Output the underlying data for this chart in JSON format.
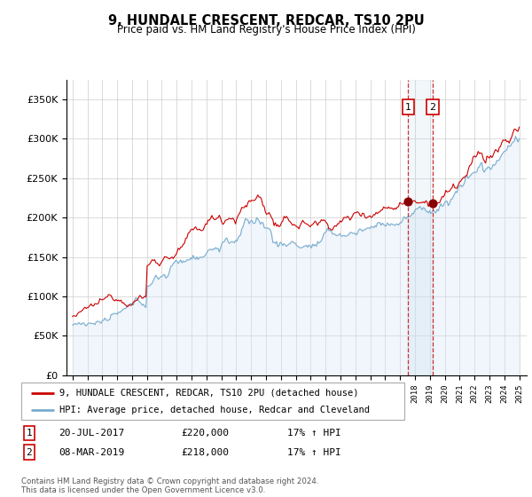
{
  "title": "9, HUNDALE CRESCENT, REDCAR, TS10 2PU",
  "subtitle": "Price paid vs. HM Land Registry's House Price Index (HPI)",
  "background_color": "#ffffff",
  "grid_color": "#cccccc",
  "red_line_color": "#cc0000",
  "blue_line_color": "#7aadcf",
  "blue_fill_color": "#d6e8f5",
  "transaction_1_date": 2017.55,
  "transaction_1_price": 220000,
  "transaction_2_date": 2019.18,
  "transaction_2_price": 218000,
  "legend_label_red": "9, HUNDALE CRESCENT, REDCAR, TS10 2PU (detached house)",
  "legend_label_blue": "HPI: Average price, detached house, Redcar and Cleveland",
  "table_row1": [
    "1",
    "20-JUL-2017",
    "£220,000",
    "17% ↑ HPI"
  ],
  "table_row2": [
    "2",
    "08-MAR-2019",
    "£218,000",
    "17% ↑ HPI"
  ],
  "footer": "Contains HM Land Registry data © Crown copyright and database right 2024.\nThis data is licensed under the Open Government Licence v3.0.",
  "ylim_max": 375000,
  "xlim_start": 1994.6,
  "xlim_end": 2025.5
}
